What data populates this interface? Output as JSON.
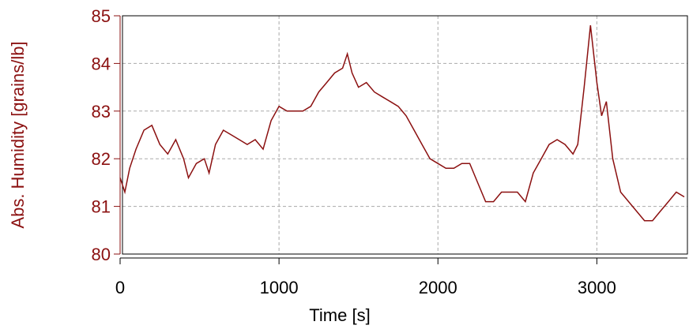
{
  "chart_data": {
    "type": "line",
    "xlabel": "Time [s]",
    "ylabel": "Abs. Humidity [grains/lb]",
    "x": [
      0,
      30,
      60,
      100,
      150,
      200,
      250,
      300,
      350,
      400,
      430,
      480,
      530,
      560,
      600,
      650,
      700,
      750,
      800,
      850,
      900,
      950,
      1000,
      1050,
      1100,
      1150,
      1200,
      1250,
      1300,
      1350,
      1400,
      1430,
      1460,
      1500,
      1550,
      1600,
      1650,
      1700,
      1750,
      1800,
      1850,
      1900,
      1950,
      2000,
      2050,
      2100,
      2150,
      2200,
      2250,
      2300,
      2350,
      2400,
      2450,
      2500,
      2550,
      2600,
      2650,
      2700,
      2750,
      2800,
      2850,
      2880,
      2920,
      2960,
      3000,
      3030,
      3060,
      3100,
      3150,
      3200,
      3250,
      3300,
      3350,
      3400,
      3450,
      3500,
      3550
    ],
    "series": [
      {
        "color": "#8b1010",
        "values": [
          81.6,
          81.3,
          81.8,
          82.2,
          82.6,
          82.7,
          82.3,
          82.1,
          82.4,
          82.0,
          81.6,
          81.9,
          82.0,
          81.7,
          82.3,
          82.6,
          82.5,
          82.4,
          82.3,
          82.4,
          82.2,
          82.8,
          83.1,
          83.0,
          83.0,
          83.0,
          83.1,
          83.4,
          83.6,
          83.8,
          83.9,
          84.2,
          83.8,
          83.5,
          83.6,
          83.4,
          83.3,
          83.2,
          83.1,
          82.9,
          82.6,
          82.3,
          82.0,
          81.9,
          81.8,
          81.8,
          81.9,
          81.9,
          81.5,
          81.1,
          81.1,
          81.3,
          81.3,
          81.3,
          81.1,
          81.7,
          82.0,
          82.3,
          82.4,
          82.3,
          82.1,
          82.3,
          83.5,
          84.8,
          83.6,
          82.9,
          83.2,
          82.0,
          81.3,
          81.1,
          80.9,
          80.7,
          80.7,
          80.9,
          81.1,
          81.3,
          81.2
        ]
      }
    ],
    "xlim": [
      0,
      3570
    ],
    "xticks": [
      0,
      1000,
      2000,
      3000
    ],
    "ylim": [
      80,
      85
    ],
    "yticks": [
      80,
      81,
      82,
      83,
      84,
      85
    ],
    "grid": true
  }
}
